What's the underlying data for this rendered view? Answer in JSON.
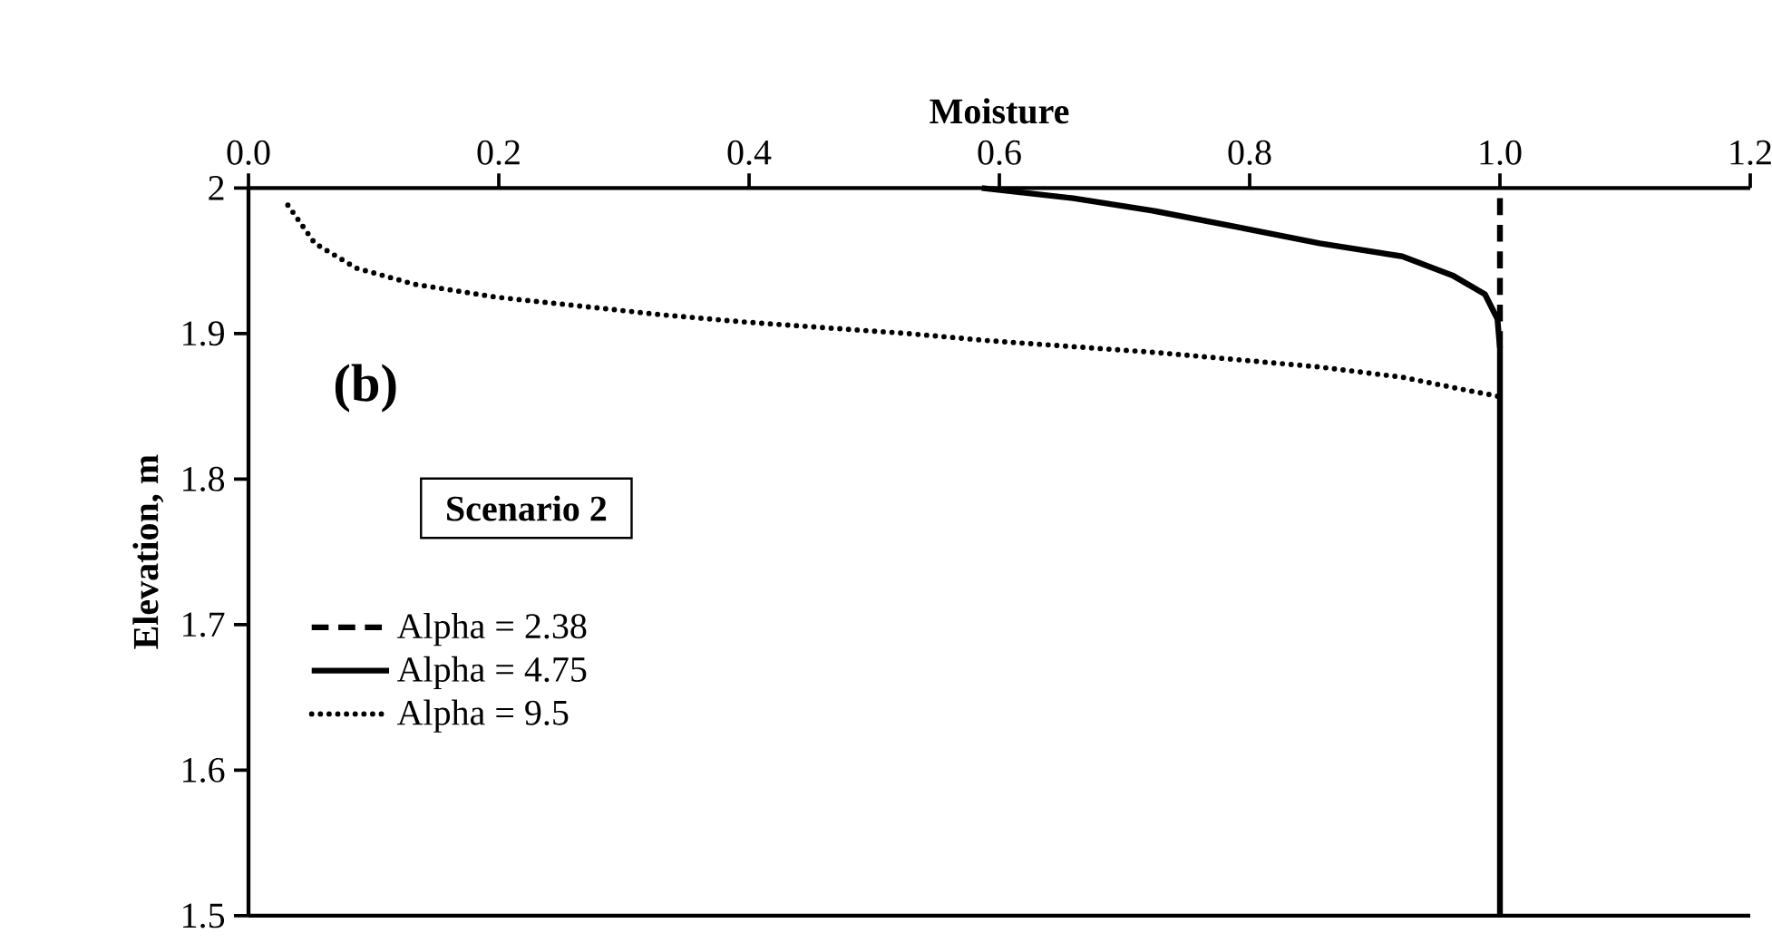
{
  "chart_data": {
    "type": "line",
    "xlabel": "Moisture",
    "ylabel": "Elevation, m",
    "legend_title": "Scenario 2",
    "annotations": [
      "(b)"
    ],
    "xlim": [
      0,
      1.2
    ],
    "ylim": [
      1.5,
      2
    ],
    "xticks": [
      {
        "value": 0,
        "label": "0.0"
      },
      {
        "value": 0.2,
        "label": "0.2"
      },
      {
        "value": 0.4,
        "label": "0.4"
      },
      {
        "value": 0.6,
        "label": "0.6"
      },
      {
        "value": 0.8,
        "label": "0.8"
      },
      {
        "value": 1,
        "label": "1.0"
      },
      {
        "value": 1.2,
        "label": "1.2"
      }
    ],
    "yticks": [
      1.5,
      1.6,
      1.7,
      1.8,
      1.9,
      2
    ],
    "grid": false,
    "legend": "left",
    "marker": "none",
    "series": [
      {
        "name": "Alpha = 2.38",
        "color": "#000000",
        "line_style": "dashed",
        "x": [
          1.0,
          1.0
        ],
        "values": [
          1.89,
          2.0
        ]
      },
      {
        "name": "Alpha = 4.75",
        "color": "#000000",
        "line_style": "solid",
        "x": [
          1.0,
          1.0,
          0.998,
          0.988,
          0.962,
          0.922,
          0.856,
          0.791,
          0.725,
          0.659,
          0.586
        ],
        "values": [
          1.5,
          1.89,
          1.91,
          1.927,
          1.94,
          1.953,
          1.962,
          1.973,
          1.984,
          1.993,
          2.0
        ]
      },
      {
        "name": "Alpha = 9.5",
        "color": "#000000",
        "line_style": "dotted",
        "x": [
          0.998,
          0.968,
          0.922,
          0.856,
          0.791,
          0.725,
          0.659,
          0.593,
          0.527,
          0.461,
          0.395,
          0.329,
          0.264,
          0.198,
          0.132,
          0.086,
          0.053,
          0.03
        ],
        "values": [
          1.857,
          1.862,
          1.87,
          1.877,
          1.882,
          1.887,
          1.891,
          1.895,
          1.9,
          1.904,
          1.908,
          1.913,
          1.919,
          1.925,
          1.934,
          1.945,
          1.962,
          1.99
        ]
      }
    ]
  }
}
